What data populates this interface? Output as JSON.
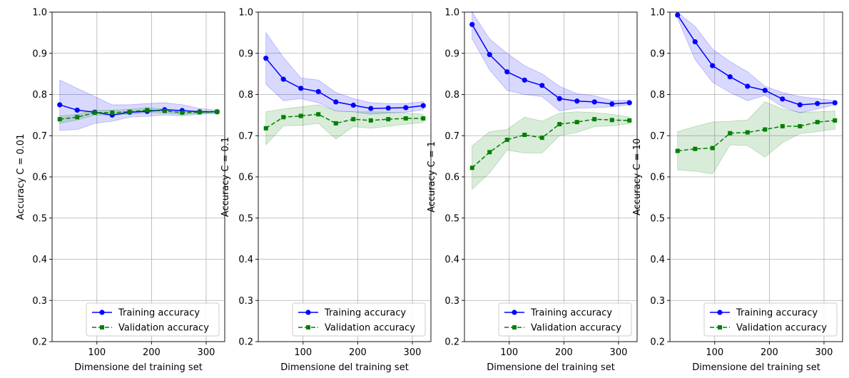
{
  "colors": {
    "training": "#0000ff",
    "validation": "#008000",
    "training_band": "#0000ff",
    "validation_band": "#008000",
    "grid": "#b0b0b0"
  },
  "chart_data": [
    {
      "type": "line",
      "xlabel": "Dimensione del training set",
      "ylabel": "Accuracy C = 0.01",
      "xlim": [
        18,
        334
      ],
      "ylim": [
        0.2,
        1.0
      ],
      "xticks": [
        100,
        200,
        300
      ],
      "yticks": [
        0.2,
        0.3,
        0.4,
        0.5,
        0.6,
        0.7,
        0.8,
        0.9,
        1.0
      ],
      "grid": true,
      "legend_position": "lower-right",
      "x": [
        32,
        64,
        96,
        128,
        160,
        192,
        224,
        256,
        288,
        320
      ],
      "series": [
        {
          "name": "Training accuracy",
          "style": "solid",
          "marker": "circle",
          "values": [
            0.775,
            0.762,
            0.757,
            0.75,
            0.757,
            0.759,
            0.763,
            0.761,
            0.758,
            0.758
          ],
          "band_upper": [
            0.835,
            0.815,
            0.795,
            0.775,
            0.775,
            0.778,
            0.78,
            0.775,
            0.766,
            0.762
          ],
          "band_lower": [
            0.713,
            0.715,
            0.73,
            0.735,
            0.745,
            0.747,
            0.75,
            0.748,
            0.752,
            0.754
          ]
        },
        {
          "name": "Validation accuracy",
          "style": "dashed",
          "marker": "square",
          "values": [
            0.74,
            0.745,
            0.756,
            0.756,
            0.758,
            0.762,
            0.76,
            0.756,
            0.757,
            0.758
          ],
          "band_upper": [
            0.748,
            0.752,
            0.762,
            0.762,
            0.764,
            0.768,
            0.765,
            0.76,
            0.76,
            0.76
          ],
          "band_lower": [
            0.73,
            0.738,
            0.75,
            0.75,
            0.752,
            0.756,
            0.755,
            0.752,
            0.754,
            0.756
          ]
        }
      ]
    },
    {
      "type": "line",
      "xlabel": "Dimensione del training set",
      "ylabel": "Accuracy C = 0.1",
      "xlim": [
        18,
        334
      ],
      "ylim": [
        0.2,
        1.0
      ],
      "xticks": [
        100,
        200,
        300
      ],
      "yticks": [
        0.2,
        0.3,
        0.4,
        0.5,
        0.6,
        0.7,
        0.8,
        0.9,
        1.0
      ],
      "grid": true,
      "legend_position": "lower-right",
      "x": [
        32,
        64,
        96,
        128,
        160,
        192,
        224,
        256,
        288,
        320
      ],
      "series": [
        {
          "name": "Training accuracy",
          "style": "solid",
          "marker": "circle",
          "values": [
            0.888,
            0.837,
            0.815,
            0.807,
            0.782,
            0.774,
            0.766,
            0.767,
            0.768,
            0.773
          ],
          "band_upper": [
            0.95,
            0.89,
            0.84,
            0.835,
            0.805,
            0.79,
            0.78,
            0.778,
            0.778,
            0.783
          ],
          "band_lower": [
            0.825,
            0.785,
            0.79,
            0.78,
            0.76,
            0.758,
            0.752,
            0.755,
            0.757,
            0.763
          ]
        },
        {
          "name": "Validation accuracy",
          "style": "dashed",
          "marker": "square",
          "values": [
            0.718,
            0.745,
            0.748,
            0.752,
            0.73,
            0.74,
            0.737,
            0.74,
            0.742,
            0.742
          ],
          "band_upper": [
            0.758,
            0.765,
            0.77,
            0.775,
            0.76,
            0.758,
            0.758,
            0.757,
            0.755,
            0.752
          ],
          "band_lower": [
            0.678,
            0.724,
            0.725,
            0.73,
            0.692,
            0.722,
            0.718,
            0.723,
            0.728,
            0.732
          ]
        }
      ]
    },
    {
      "type": "line",
      "xlabel": "Dimensione del training set",
      "ylabel": "Accuracy C = 1",
      "xlim": [
        18,
        334
      ],
      "ylim": [
        0.2,
        1.0
      ],
      "xticks": [
        100,
        200,
        300
      ],
      "yticks": [
        0.2,
        0.3,
        0.4,
        0.5,
        0.6,
        0.7,
        0.8,
        0.9,
        1.0
      ],
      "grid": true,
      "legend_position": "lower-right",
      "x": [
        32,
        64,
        96,
        128,
        160,
        192,
        224,
        256,
        288,
        320
      ],
      "series": [
        {
          "name": "Training accuracy",
          "style": "solid",
          "marker": "circle",
          "values": [
            0.97,
            0.897,
            0.855,
            0.835,
            0.822,
            0.79,
            0.784,
            0.782,
            0.777,
            0.78
          ],
          "band_upper": [
            1.0,
            0.935,
            0.9,
            0.87,
            0.85,
            0.82,
            0.802,
            0.797,
            0.785,
            0.786
          ],
          "band_lower": [
            0.935,
            0.86,
            0.81,
            0.8,
            0.795,
            0.76,
            0.767,
            0.768,
            0.77,
            0.775
          ]
        },
        {
          "name": "Validation accuracy",
          "style": "dashed",
          "marker": "square",
          "values": [
            0.622,
            0.66,
            0.69,
            0.702,
            0.695,
            0.728,
            0.733,
            0.74,
            0.738,
            0.737
          ],
          "band_upper": [
            0.675,
            0.71,
            0.715,
            0.745,
            0.735,
            0.755,
            0.758,
            0.756,
            0.752,
            0.745
          ],
          "band_lower": [
            0.57,
            0.61,
            0.665,
            0.658,
            0.658,
            0.7,
            0.708,
            0.722,
            0.724,
            0.729
          ]
        }
      ]
    },
    {
      "type": "line",
      "xlabel": "Dimensione del training set",
      "ylabel": "Accuracy C = 10",
      "xlim": [
        18,
        334
      ],
      "ylim": [
        0.2,
        1.0
      ],
      "xticks": [
        100,
        200,
        300
      ],
      "yticks": [
        0.2,
        0.3,
        0.4,
        0.5,
        0.6,
        0.7,
        0.8,
        0.9,
        1.0
      ],
      "grid": true,
      "legend_position": "lower-right",
      "x": [
        32,
        64,
        96,
        128,
        160,
        192,
        224,
        256,
        288,
        320
      ],
      "series": [
        {
          "name": "Training accuracy",
          "style": "solid",
          "marker": "circle",
          "values": [
            0.993,
            0.928,
            0.87,
            0.843,
            0.82,
            0.81,
            0.789,
            0.775,
            0.778,
            0.78
          ],
          "band_upper": [
            1.0,
            0.965,
            0.91,
            0.88,
            0.855,
            0.82,
            0.805,
            0.795,
            0.79,
            0.785
          ],
          "band_lower": [
            0.985,
            0.885,
            0.83,
            0.805,
            0.785,
            0.798,
            0.77,
            0.755,
            0.765,
            0.775
          ]
        },
        {
          "name": "Validation accuracy",
          "style": "dashed",
          "marker": "square",
          "values": [
            0.663,
            0.668,
            0.67,
            0.706,
            0.708,
            0.715,
            0.723,
            0.723,
            0.733,
            0.737
          ],
          "band_upper": [
            0.71,
            0.722,
            0.733,
            0.735,
            0.738,
            0.782,
            0.765,
            0.757,
            0.758,
            0.76
          ],
          "band_lower": [
            0.617,
            0.614,
            0.607,
            0.678,
            0.676,
            0.648,
            0.683,
            0.705,
            0.71,
            0.716
          ]
        }
      ]
    }
  ]
}
